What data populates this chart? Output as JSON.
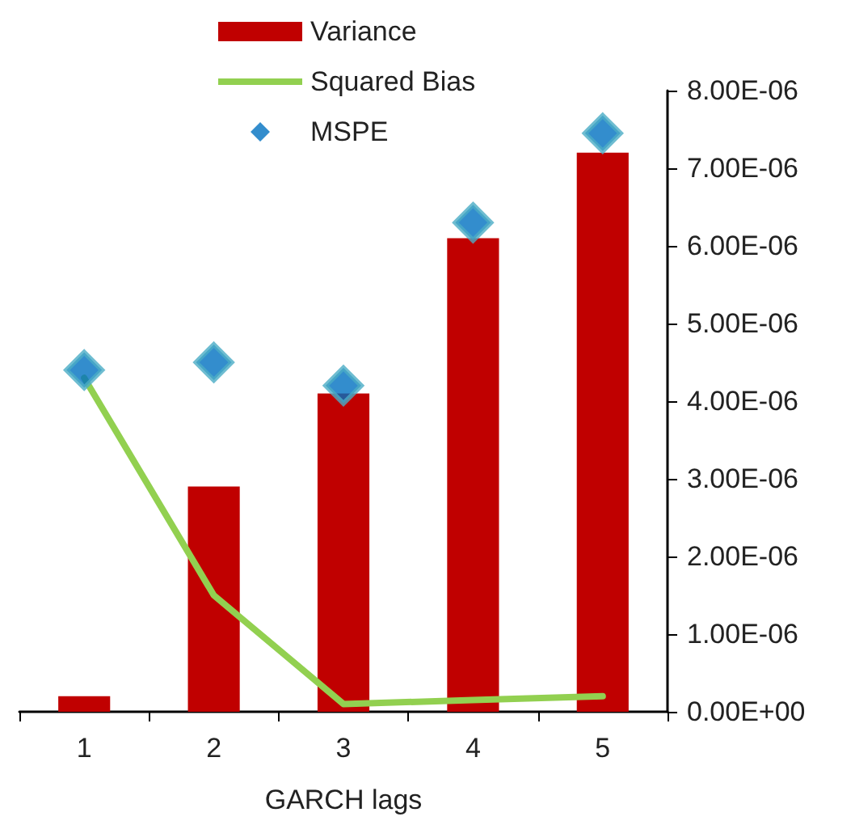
{
  "chart_data": {
    "type": "bar",
    "xlabel": "GARCH lags",
    "categories": [
      "1",
      "2",
      "3",
      "4",
      "5"
    ],
    "series": [
      {
        "name": "Variance",
        "color": "#c00000",
        "values": [
          2e-07,
          2.9e-06,
          4.1e-06,
          6.1e-06,
          7.2e-06
        ]
      },
      {
        "name": "Squared Bias",
        "type": "line",
        "color": "#92d050",
        "marker": "none",
        "line_style": "solid",
        "values": [
          4.3e-06,
          1.5e-06,
          1e-07,
          1.5e-07,
          2e-07
        ]
      },
      {
        "name": "MSPE",
        "type": "scatter",
        "color": "#0070c0",
        "marker": "diamond",
        "x": [
          "1",
          "2",
          "3",
          "4",
          "5"
        ],
        "values": [
          4.4e-06,
          4.5e-06,
          4.2e-06,
          6.3e-06,
          7.45e-06
        ]
      }
    ],
    "ylim": [
      0,
      8e-06
    ],
    "yticks": [
      {
        "value": 0,
        "label": "0.00E+00"
      },
      {
        "value": 1e-06,
        "label": "1.00E-06"
      },
      {
        "value": 2e-06,
        "label": "2.00E-06"
      },
      {
        "value": 3e-06,
        "label": "3.00E-06"
      },
      {
        "value": 4e-06,
        "label": "4.00E-06"
      },
      {
        "value": 5e-06,
        "label": "5.00E-06"
      },
      {
        "value": 6e-06,
        "label": "6.00E-06"
      },
      {
        "value": 7e-06,
        "label": "7.00E-06"
      },
      {
        "value": 8e-06,
        "label": "8.00E-06"
      }
    ],
    "grid": false,
    "legend": "top left"
  }
}
